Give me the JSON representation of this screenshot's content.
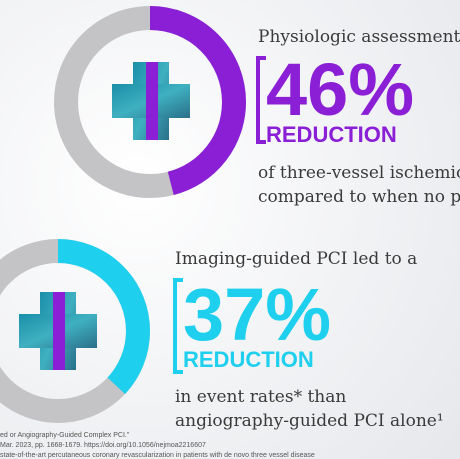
{
  "panels": [
    {
      "heading": "Physiologic assessment co",
      "value": 46,
      "value_label": "46%",
      "label": "REDUCTION",
      "lines": [
        "of three-vessel ischemic di",
        "compared to when no physi"
      ],
      "color": "#8a1fd6"
    },
    {
      "heading": "Imaging-guided PCI led to a",
      "value": 37,
      "value_label": "37%",
      "label": "REDUCTION",
      "lines": [
        "in event rates* than",
        "angiography-guided PCI alone¹"
      ],
      "color": "#1fd0ee"
    }
  ],
  "footnotes": [
    "ed or Angiography-Guided Complex PCI.\"",
    "Mar. 2023, pp. 1668-1679. https://doi.org/10.1056/nejmoa2216607",
    "state-of-the-art percutaneous coronary revascularization in patients with de novo three vessel disease"
  ]
}
